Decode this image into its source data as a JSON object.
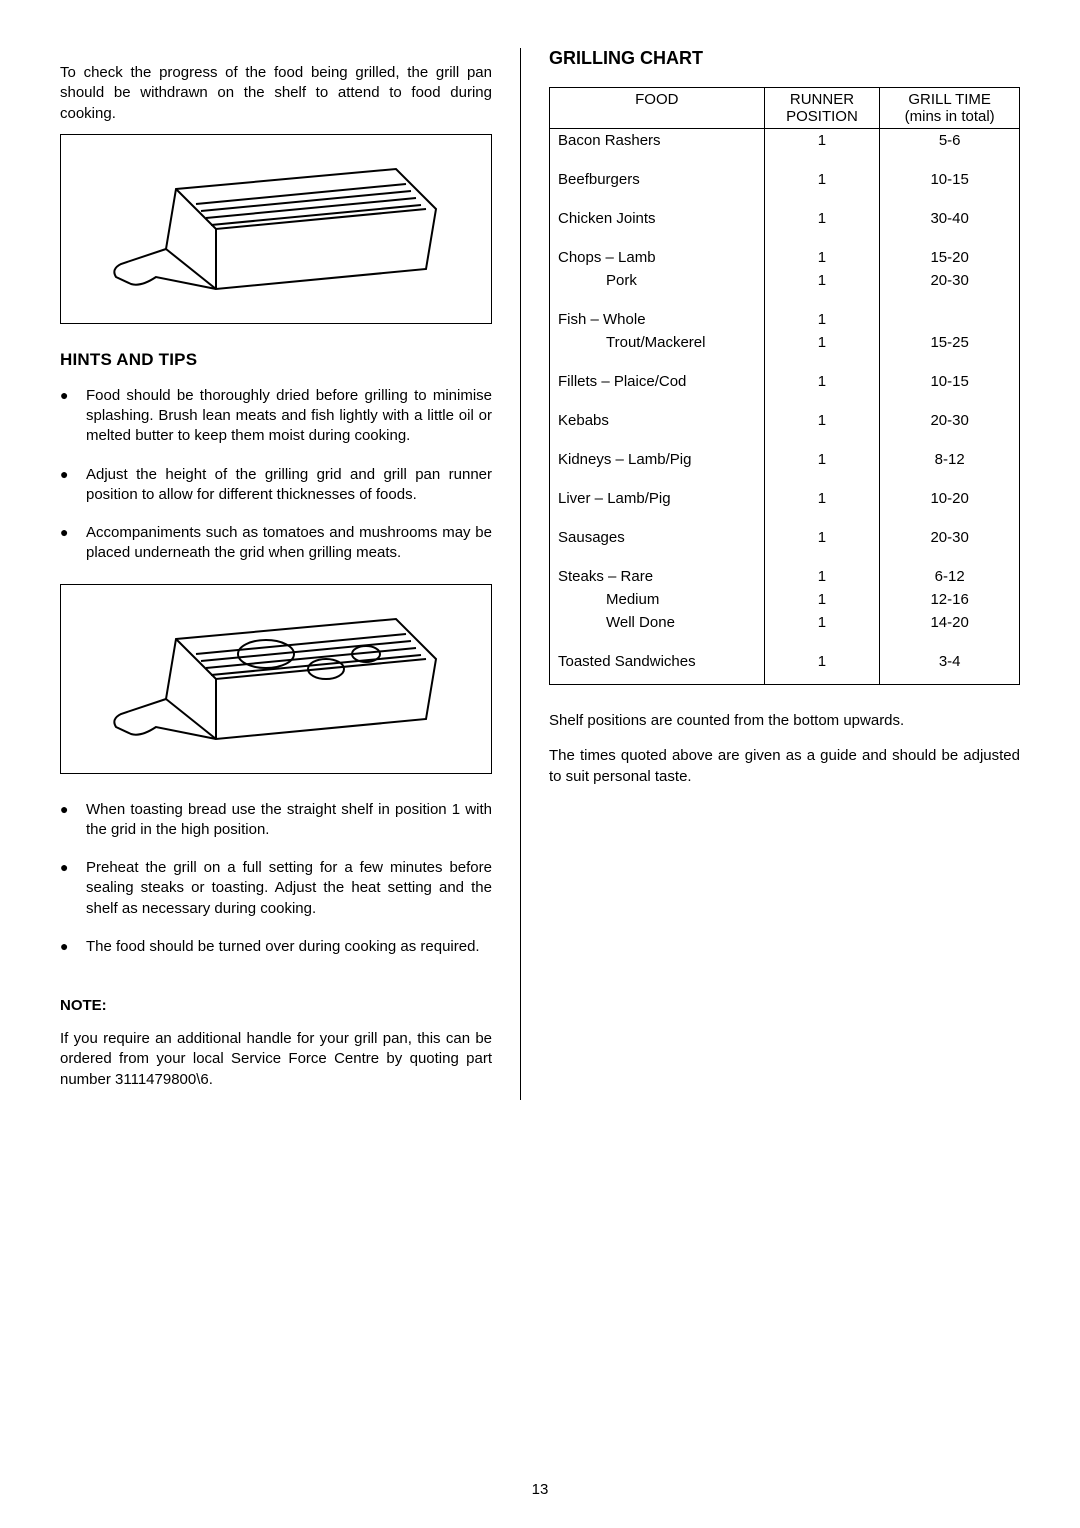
{
  "left": {
    "intro": "To check the progress of the food being grilled, the grill pan should be withdrawn on the shelf to attend to food during cooking.",
    "hints_title": "HINTS AND TIPS",
    "hints": [
      "Food should be thoroughly dried before grilling to minimise splashing.  Brush lean meats and fish lightly with a little oil or melted butter to keep them moist during cooking.",
      "Adjust the height of the grilling grid and grill pan runner position to allow for different thicknesses of foods.",
      "Accompaniments such as tomatoes and mushrooms may be placed underneath the grid when grilling meats."
    ],
    "hints2": [
      "When toasting bread use the straight shelf in position 1 with the grid in the high position.",
      "Preheat the grill on a full setting for a few minutes before sealing steaks or toasting.  Adjust the heat setting and the shelf as necessary during cooking.",
      "The food should be turned over during cooking as required."
    ],
    "note_label": "NOTE:",
    "note": "If you require an additional handle for your grill pan, this can be ordered from your local Service Force Centre by quoting part number 3111479800\\6."
  },
  "right": {
    "title": "GRILLING CHART",
    "headers": {
      "food": "FOOD",
      "pos1": "RUNNER",
      "pos2": "POSITION",
      "time1": "GRILL TIME",
      "time2": "(mins in total)"
    },
    "rows": [
      {
        "food": "Bacon Rashers",
        "pos": "1",
        "time": "5-6"
      },
      {
        "food": "Beefburgers",
        "pos": "1",
        "time": "10-15"
      },
      {
        "food": "Chicken Joints",
        "pos": "1",
        "time": "30-40"
      },
      {
        "food": "Chops – Lamb",
        "pos": "1",
        "time": "15-20",
        "sub": true,
        "subrows": [
          {
            "food": "Pork",
            "pos": "1",
            "time": "20-30"
          }
        ]
      },
      {
        "food": "Fish – Whole",
        "pos": "1",
        "time": "",
        "sub": true,
        "subrows": [
          {
            "food": "Trout/Mackerel",
            "pos": "1",
            "time": "15-25"
          }
        ]
      },
      {
        "food": "Fillets – Plaice/Cod",
        "pos": "1",
        "time": "10-15"
      },
      {
        "food": "Kebabs",
        "pos": "1",
        "time": "20-30"
      },
      {
        "food": "Kidneys – Lamb/Pig",
        "pos": "1",
        "time": "8-12"
      },
      {
        "food": "Liver – Lamb/Pig",
        "pos": "1",
        "time": "10-20"
      },
      {
        "food": "Sausages",
        "pos": "1",
        "time": "20-30"
      },
      {
        "food": "Steaks – Rare",
        "pos": "1",
        "time": "6-12",
        "sub": true,
        "subrows": [
          {
            "food": "Medium",
            "pos": "1",
            "time": "12-16"
          },
          {
            "food": "Well Done",
            "pos": "1",
            "time": "14-20"
          }
        ]
      },
      {
        "food": "Toasted Sandwiches",
        "pos": "1",
        "time": "3-4"
      }
    ],
    "footer1": "Shelf positions are counted from the bottom upwards.",
    "footer2": "The times quoted above are given as a guide and should be adjusted to suit personal taste."
  },
  "page_number": "13"
}
